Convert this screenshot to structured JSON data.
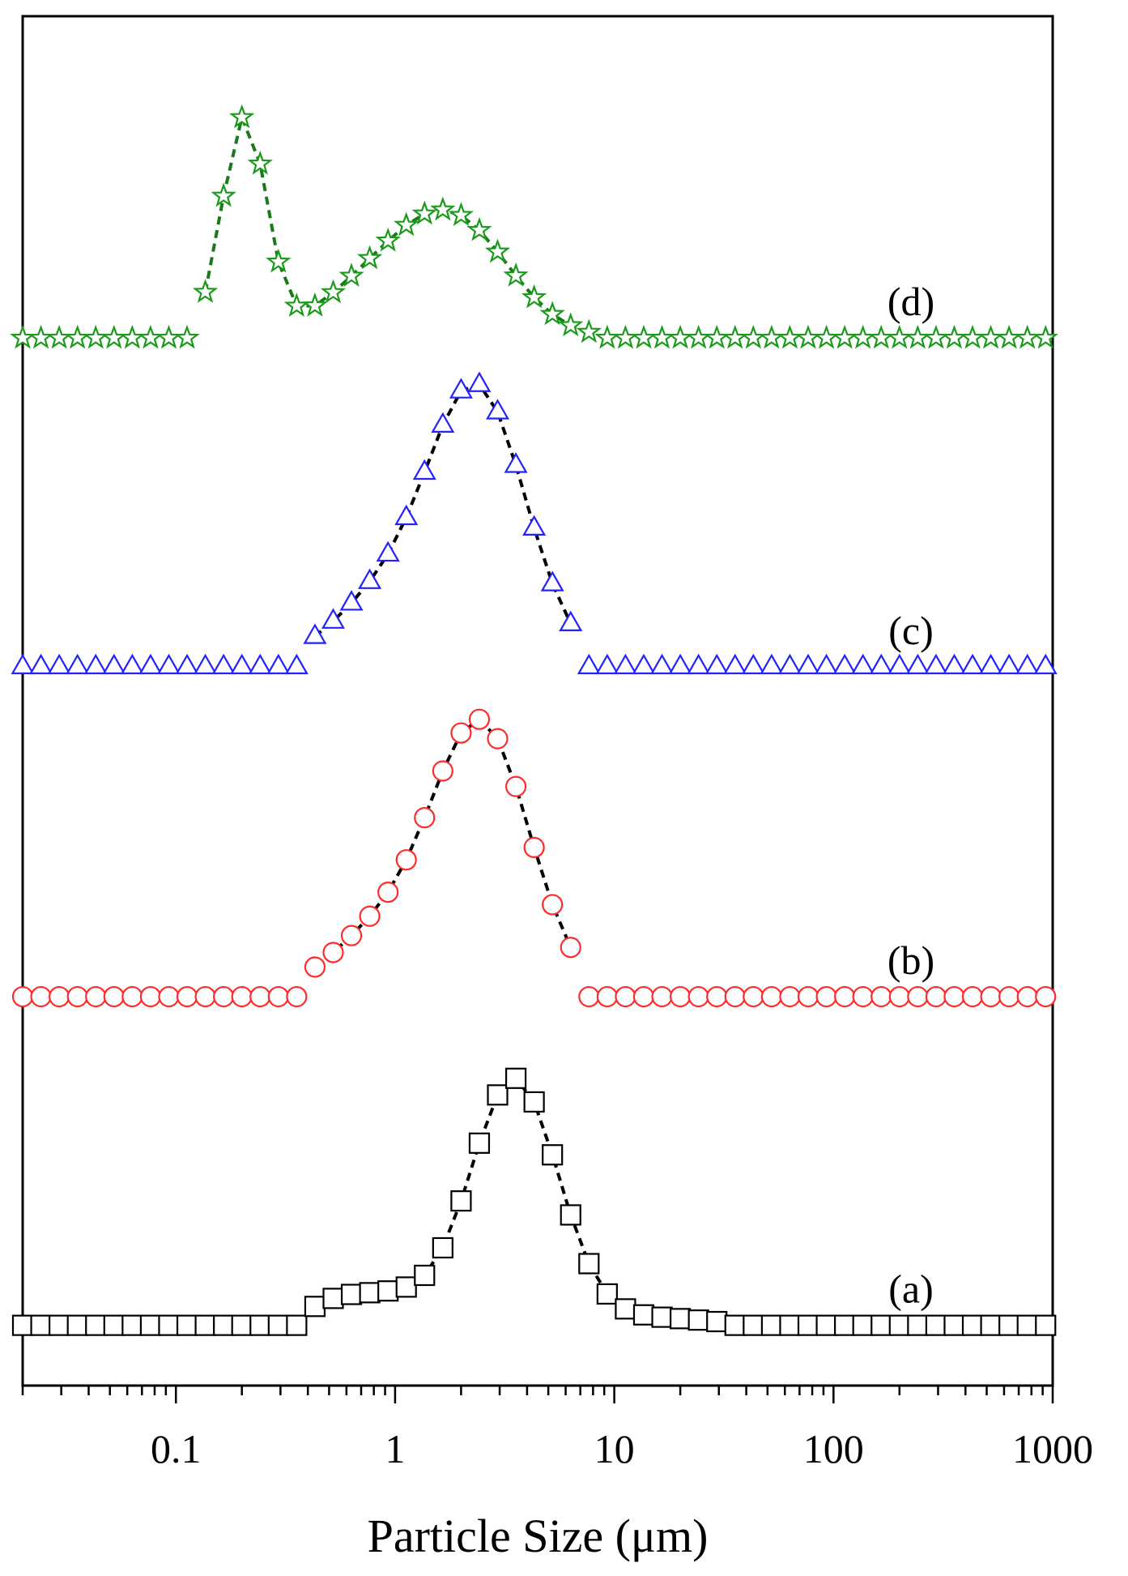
{
  "chart_data": {
    "type": "scatter",
    "xscale": "log",
    "xlabel": "Particle Size (μm)",
    "ylabel": "",
    "xlim": [
      0.02,
      1000
    ],
    "x_ticks": [
      {
        "value": 0.1,
        "label": "0.1"
      },
      {
        "value": 1,
        "label": "1"
      },
      {
        "value": 10,
        "label": "10"
      },
      {
        "value": 100,
        "label": "100"
      },
      {
        "value": 1000,
        "label": "1000"
      }
    ],
    "y_ticks_shown": false,
    "legend": "none",
    "series": [
      {
        "label": "(a)",
        "marker": "square",
        "color": "#000000",
        "fit_line_color": "#000000",
        "baseline_fraction": 0.044,
        "amplitude_fraction": 0.18,
        "x_range": [
          0.02,
          1000
        ],
        "points_per_decade": 12,
        "peaks": [
          {
            "center": 3.5,
            "width_decades": 0.2,
            "height": 1.0
          },
          {
            "center": 0.9,
            "width_decades": 0.2,
            "height": 0.12
          },
          {
            "center": 0.5,
            "width_decades": 0.12,
            "height": 0.05
          },
          {
            "center": 15,
            "width_decades": 0.25,
            "height": 0.03
          }
        ],
        "onset": 0.38,
        "cutoff": 32
      },
      {
        "label": "(b)",
        "marker": "circle",
        "color": "#ff2a2a",
        "fit_line_color": "#000000",
        "baseline_fraction": 0.284,
        "amplitude_fraction": 0.192,
        "x_range": [
          0.02,
          1000
        ],
        "points_per_decade": 12,
        "peaks": [
          {
            "center": 2.5,
            "width_decades": 0.22,
            "height": 1.0
          },
          {
            "center": 0.9,
            "width_decades": 0.25,
            "height": 0.25
          }
        ],
        "onset": 0.38,
        "cutoff": 7
      },
      {
        "label": "(c)",
        "marker": "triangle",
        "color": "#2222ff",
        "fit_line_color": "#000000",
        "baseline_fraction": 0.525,
        "amplitude_fraction": 0.195,
        "x_range": [
          0.02,
          1000
        ],
        "points_per_decade": 12,
        "peaks": [
          {
            "center": 2.4,
            "width_decades": 0.22,
            "height": 1.0
          },
          {
            "center": 0.9,
            "width_decades": 0.25,
            "height": 0.25
          }
        ],
        "onset": 0.38,
        "cutoff": 7
      },
      {
        "label": "(d)",
        "marker": "star",
        "color": "#1a9a1a",
        "fit_line_color": "#1a7a1a",
        "baseline_fraction": 0.765,
        "amplitude_fraction": 0.16,
        "x_range": [
          0.02,
          1000
        ],
        "points_per_decade": 12,
        "peaks": [
          {
            "center": 0.205,
            "width_decades": 0.1,
            "height": 1.0
          },
          {
            "center": 1.9,
            "width_decades": 0.25,
            "height": 0.5
          },
          {
            "center": 0.8,
            "width_decades": 0.25,
            "height": 0.22
          }
        ],
        "onset": 0.13,
        "cutoff": 8
      }
    ]
  }
}
